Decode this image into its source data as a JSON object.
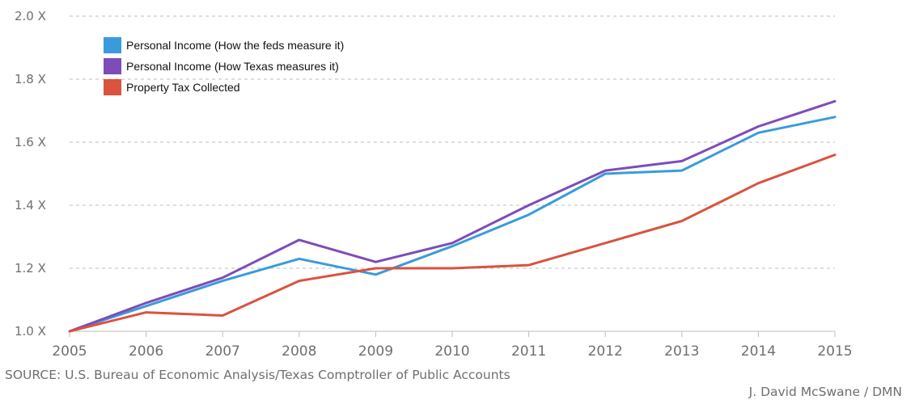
{
  "chart_data": {
    "type": "line",
    "x": [
      "2005",
      "2006",
      "2007",
      "2008",
      "2009",
      "2010",
      "2011",
      "2012",
      "2013",
      "2014",
      "2015"
    ],
    "series": [
      {
        "name": "Personal Income (How the feds measure it)",
        "color": "#3a9bdc",
        "values": [
          1.0,
          1.08,
          1.16,
          1.23,
          1.18,
          1.27,
          1.37,
          1.5,
          1.51,
          1.63,
          1.68
        ]
      },
      {
        "name": "Personal Income (How Texas measures it)",
        "color": "#7e4cb8",
        "values": [
          1.0,
          1.09,
          1.17,
          1.29,
          1.22,
          1.28,
          1.4,
          1.51,
          1.54,
          1.65,
          1.73
        ]
      },
      {
        "name": "Property Tax Collected",
        "color": "#d9533f",
        "values": [
          1.0,
          1.06,
          1.05,
          1.16,
          1.2,
          1.2,
          1.21,
          1.28,
          1.35,
          1.47,
          1.56
        ]
      }
    ],
    "yticks": [
      "1.0 X",
      "1.2 X",
      "1.4 X",
      "1.6 X",
      "1.8 X",
      "2.0 X"
    ],
    "ylim": [
      1.0,
      2.0
    ],
    "grid": "horizontal dashed",
    "legend_position": "top-left"
  },
  "source": "SOURCE: U.S. Bureau of Economic Analysis/Texas Comptroller of Public Accounts",
  "credit": "J. David McSwane / DMN"
}
